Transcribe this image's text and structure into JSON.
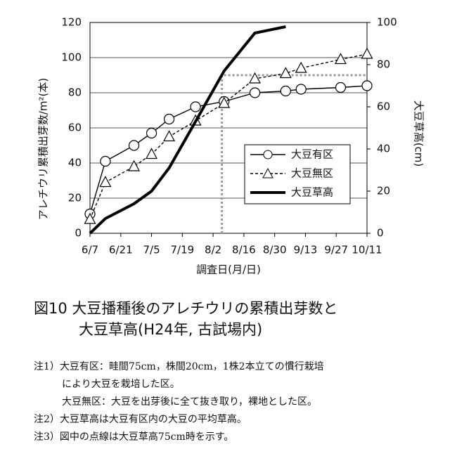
{
  "chart_data": {
    "type": "line",
    "title": [
      "図10 大豆播種後のアレチウリの累積出芽数と",
      "大豆草高(H24年, 古試場内)"
    ],
    "x_label": "調査日(月/日)",
    "y_label": "アレチウリ累積出芽数/m²(本)",
    "y2_label": "大豆草高(cm)",
    "xlim": [
      "6/7",
      "10/11"
    ],
    "xticks": [
      "6/7",
      "6/21",
      "7/5",
      "7/19",
      "8/2",
      "8/16",
      "8/30",
      "9/13",
      "9/27",
      "10/11"
    ],
    "ylim": [
      0,
      120
    ],
    "yticks": [
      0,
      20,
      40,
      60,
      80,
      100,
      120
    ],
    "y2lim": [
      0,
      100
    ],
    "y2ticks": [
      0,
      20,
      40,
      60,
      80,
      100
    ],
    "grid": true,
    "x": [
      "6/7",
      "6/14",
      "6/27",
      "7/5",
      "7/13",
      "7/25",
      "8/7",
      "8/21",
      "9/4",
      "9/11",
      "9/29",
      "10/11"
    ],
    "series": [
      {
        "name": "大豆有区",
        "color": "#000000",
        "marker": "circle",
        "dash": false,
        "values": [
          11,
          41,
          50,
          57,
          65,
          72,
          75,
          80,
          81,
          82,
          83,
          84
        ]
      },
      {
        "name": "大豆無区",
        "color": "#000000",
        "marker": "triangle",
        "dash": true,
        "values": [
          8,
          29,
          38,
          45,
          55,
          64,
          74,
          88,
          91,
          94,
          99,
          102
        ]
      },
      {
        "name": "大豆草高",
        "color": "#000000",
        "marker": "none",
        "dash": false,
        "axis": "y2",
        "values": [
          0,
          7,
          14,
          20,
          31,
          53,
          77,
          95,
          98,
          null,
          null,
          null
        ]
      }
    ],
    "reference": {
      "x": "8/6",
      "y2": 75,
      "color": "#999999"
    },
    "legend": "lower-right",
    "notes": [
      "注1）大豆有区：畦間75cm，株間20cm，1株2本立ての慣行栽培",
      "により大豆を栽培した区。",
      "大豆無区：大豆を出芽後に全て抜き取り，裸地とした区。",
      "注2）大豆草高は大豆有区内の大豆の平均草高。",
      "注3）図中の点線は大豆草高75cm時を示す。"
    ]
  }
}
